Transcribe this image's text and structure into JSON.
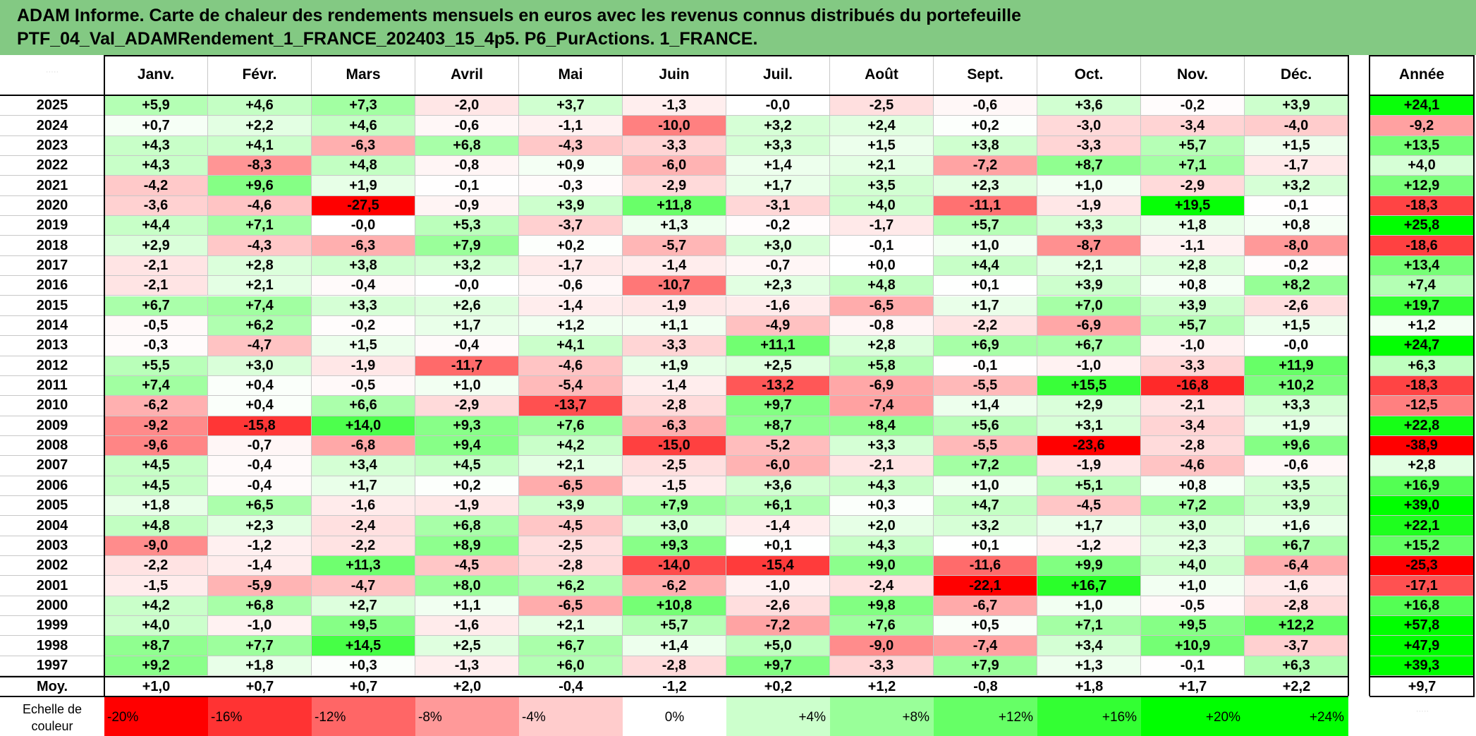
{
  "title": {
    "line1": "ADAM Informe. Carte de chaleur des rendements mensuels en euros avec les revenus connus distribués du portefeuille",
    "line2": "PTF_04_Val_ADAMRendement_1_FRANCE_202403_15_4p5. P6_PurActions. 1_FRANCE."
  },
  "chart_data": {
    "type": "heatmap",
    "columns": [
      "Janv.",
      "Févr.",
      "Mars",
      "Avril",
      "Mai",
      "Juin",
      "Juil.",
      "Août",
      "Sept.",
      "Oct.",
      "Nov.",
      "Déc."
    ],
    "year_column_label": "Année",
    "rows": [
      {
        "year": "2025",
        "values": [
          "+5,9",
          "+4,6",
          "+7,3",
          "-2,0",
          "+3,7",
          "-1,3",
          "-0,0",
          "-2,5",
          "-0,6",
          "+3,6",
          "-0,2",
          "+3,9"
        ],
        "annual": "+24,1"
      },
      {
        "year": "2024",
        "values": [
          "+0,7",
          "+2,2",
          "+4,6",
          "-0,6",
          "-1,1",
          "-10,0",
          "+3,2",
          "+2,4",
          "+0,2",
          "-3,0",
          "-3,4",
          "-4,0"
        ],
        "annual": "-9,2"
      },
      {
        "year": "2023",
        "values": [
          "+4,3",
          "+4,1",
          "-6,3",
          "+6,8",
          "-4,3",
          "-3,3",
          "+3,3",
          "+1,5",
          "+3,8",
          "-3,3",
          "+5,7",
          "+1,5"
        ],
        "annual": "+13,5"
      },
      {
        "year": "2022",
        "values": [
          "+4,3",
          "-8,3",
          "+4,8",
          "-0,8",
          "+0,9",
          "-6,0",
          "+1,4",
          "+2,1",
          "-7,2",
          "+8,7",
          "+7,1",
          "-1,7"
        ],
        "annual": "+4,0"
      },
      {
        "year": "2021",
        "values": [
          "-4,2",
          "+9,6",
          "+1,9",
          "-0,1",
          "-0,3",
          "-2,9",
          "+1,7",
          "+3,5",
          "+2,3",
          "+1,0",
          "-2,9",
          "+3,2"
        ],
        "annual": "+12,9"
      },
      {
        "year": "2020",
        "values": [
          "-3,6",
          "-4,6",
          "-27,5",
          "-0,9",
          "+3,9",
          "+11,8",
          "-3,1",
          "+4,0",
          "-11,1",
          "-1,9",
          "+19,5",
          "-0,1"
        ],
        "annual": "-18,3"
      },
      {
        "year": "2019",
        "values": [
          "+4,4",
          "+7,1",
          "-0,0",
          "+5,3",
          "-3,7",
          "+1,3",
          "-0,2",
          "-1,7",
          "+5,7",
          "+3,3",
          "+1,8",
          "+0,8"
        ],
        "annual": "+25,8"
      },
      {
        "year": "2018",
        "values": [
          "+2,9",
          "-4,3",
          "-6,3",
          "+7,9",
          "+0,2",
          "-5,7",
          "+3,0",
          "-0,1",
          "+1,0",
          "-8,7",
          "-1,1",
          "-8,0"
        ],
        "annual": "-18,6"
      },
      {
        "year": "2017",
        "values": [
          "-2,1",
          "+2,8",
          "+3,8",
          "+3,2",
          "-1,7",
          "-1,4",
          "-0,7",
          "+0,0",
          "+4,4",
          "+2,1",
          "+2,8",
          "-0,2"
        ],
        "annual": "+13,4"
      },
      {
        "year": "2016",
        "values": [
          "-2,1",
          "+2,1",
          "-0,4",
          "-0,0",
          "-0,6",
          "-10,7",
          "+2,3",
          "+4,8",
          "+0,1",
          "+3,9",
          "+0,8",
          "+8,2"
        ],
        "annual": "+7,4"
      },
      {
        "year": "2015",
        "values": [
          "+6,7",
          "+7,4",
          "+3,3",
          "+2,6",
          "-1,4",
          "-1,9",
          "-1,6",
          "-6,5",
          "+1,7",
          "+7,0",
          "+3,9",
          "-2,6"
        ],
        "annual": "+19,7"
      },
      {
        "year": "2014",
        "values": [
          "-0,5",
          "+6,2",
          "-0,2",
          "+1,7",
          "+1,2",
          "+1,1",
          "-4,9",
          "-0,8",
          "-2,2",
          "-6,9",
          "+5,7",
          "+1,5"
        ],
        "annual": "+1,2"
      },
      {
        "year": "2013",
        "values": [
          "-0,3",
          "-4,7",
          "+1,5",
          "-0,4",
          "+4,1",
          "-3,3",
          "+11,1",
          "+2,8",
          "+6,9",
          "+6,7",
          "-1,0",
          "-0,0"
        ],
        "annual": "+24,7"
      },
      {
        "year": "2012",
        "values": [
          "+5,5",
          "+3,0",
          "-1,9",
          "-11,7",
          "-4,6",
          "+1,9",
          "+2,5",
          "+5,8",
          "-0,1",
          "-1,0",
          "-3,3",
          "+11,9"
        ],
        "annual": "+6,3"
      },
      {
        "year": "2011",
        "values": [
          "+7,4",
          "+0,4",
          "-0,5",
          "+1,0",
          "-5,4",
          "-1,4",
          "-13,2",
          "-6,9",
          "-5,5",
          "+15,5",
          "-16,8",
          "+10,2"
        ],
        "annual": "-18,3"
      },
      {
        "year": "2010",
        "values": [
          "-6,2",
          "+0,4",
          "+6,6",
          "-2,9",
          "-13,7",
          "-2,8",
          "+9,7",
          "-7,4",
          "+1,4",
          "+2,9",
          "-2,1",
          "+3,3"
        ],
        "annual": "-12,5"
      },
      {
        "year": "2009",
        "values": [
          "-9,2",
          "-15,8",
          "+14,0",
          "+9,3",
          "+7,6",
          "-6,3",
          "+8,7",
          "+8,4",
          "+5,6",
          "+3,1",
          "-3,4",
          "+1,9"
        ],
        "annual": "+22,8"
      },
      {
        "year": "2008",
        "values": [
          "-9,6",
          "-0,7",
          "-6,8",
          "+9,4",
          "+4,2",
          "-15,0",
          "-5,2",
          "+3,3",
          "-5,5",
          "-23,6",
          "-2,8",
          "+9,6"
        ],
        "annual": "-38,9"
      },
      {
        "year": "2007",
        "values": [
          "+4,5",
          "-0,4",
          "+3,4",
          "+4,5",
          "+2,1",
          "-2,5",
          "-6,0",
          "-2,1",
          "+7,2",
          "-1,9",
          "-4,6",
          "-0,6"
        ],
        "annual": "+2,8"
      },
      {
        "year": "2006",
        "values": [
          "+4,5",
          "-0,4",
          "+1,7",
          "+0,2",
          "-6,5",
          "-1,5",
          "+3,6",
          "+4,3",
          "+1,0",
          "+5,1",
          "+0,8",
          "+3,5"
        ],
        "annual": "+16,9"
      },
      {
        "year": "2005",
        "values": [
          "+1,8",
          "+6,5",
          "-1,6",
          "-1,9",
          "+3,9",
          "+7,9",
          "+6,1",
          "+0,3",
          "+4,7",
          "-4,5",
          "+7,2",
          "+3,9"
        ],
        "annual": "+39,0"
      },
      {
        "year": "2004",
        "values": [
          "+4,8",
          "+2,3",
          "-2,4",
          "+6,8",
          "-4,5",
          "+3,0",
          "-1,4",
          "+2,0",
          "+3,2",
          "+1,7",
          "+3,0",
          "+1,6"
        ],
        "annual": "+22,1"
      },
      {
        "year": "2003",
        "values": [
          "-9,0",
          "-1,2",
          "-2,2",
          "+8,9",
          "-2,5",
          "+9,3",
          "+0,1",
          "+4,3",
          "+0,1",
          "-1,2",
          "+2,3",
          "+6,7"
        ],
        "annual": "+15,2"
      },
      {
        "year": "2002",
        "values": [
          "-2,2",
          "-1,4",
          "+11,3",
          "-4,5",
          "-2,8",
          "-14,0",
          "-15,4",
          "+9,0",
          "-11,6",
          "+9,9",
          "+4,0",
          "-6,4"
        ],
        "annual": "-25,3"
      },
      {
        "year": "2001",
        "values": [
          "-1,5",
          "-5,9",
          "-4,7",
          "+8,0",
          "+6,2",
          "-6,2",
          "-1,0",
          "-2,4",
          "-22,1",
          "+16,7",
          "+1,0",
          "-1,6"
        ],
        "annual": "-17,1"
      },
      {
        "year": "2000",
        "values": [
          "+4,2",
          "+6,8",
          "+2,7",
          "+1,1",
          "-6,5",
          "+10,8",
          "-2,6",
          "+9,8",
          "-6,7",
          "+1,0",
          "-0,5",
          "-2,8"
        ],
        "annual": "+16,8"
      },
      {
        "year": "1999",
        "values": [
          "+4,0",
          "-1,0",
          "+9,5",
          "-1,6",
          "+2,1",
          "+5,7",
          "-7,2",
          "+7,6",
          "+0,5",
          "+7,1",
          "+9,5",
          "+12,2"
        ],
        "annual": "+57,8"
      },
      {
        "year": "1998",
        "values": [
          "+8,7",
          "+7,7",
          "+14,5",
          "+2,5",
          "+6,7",
          "+1,4",
          "+5,0",
          "-9,0",
          "-7,4",
          "+3,4",
          "+10,9",
          "-3,7"
        ],
        "annual": "+47,9"
      },
      {
        "year": "1997",
        "values": [
          "+9,2",
          "+1,8",
          "+0,3",
          "-1,3",
          "+6,0",
          "-2,8",
          "+9,7",
          "-3,3",
          "+7,9",
          "+1,3",
          "-0,1",
          "+6,3"
        ],
        "annual": "+39,3"
      }
    ],
    "average": {
      "label": "Moy.",
      "values": [
        "+1,0",
        "+0,7",
        "+0,7",
        "+2,0",
        "-0,4",
        "-1,2",
        "+0,2",
        "+1,2",
        "-0,8",
        "+1,8",
        "+1,7",
        "+2,2"
      ],
      "annual": "+9,7"
    },
    "color_scale": {
      "label_line1": "Echelle de",
      "label_line2": "couleur",
      "steps": [
        {
          "label": "-20%",
          "value": -20,
          "color": "#ff0000"
        },
        {
          "label": "-16%",
          "value": -16,
          "color": "#ff3333"
        },
        {
          "label": "-12%",
          "value": -12,
          "color": "#ff6666"
        },
        {
          "label": "-8%",
          "value": -8,
          "color": "#ff9999"
        },
        {
          "label": "-4%",
          "value": -4,
          "color": "#ffcccc"
        },
        {
          "label": "0%",
          "value": 0,
          "color": "#ffffff"
        },
        {
          "label": "+4%",
          "value": 4,
          "color": "#ccffcc"
        },
        {
          "label": "+8%",
          "value": 8,
          "color": "#99ff99"
        },
        {
          "label": "+12%",
          "value": 12,
          "color": "#66ff66"
        },
        {
          "label": "+16%",
          "value": 16,
          "color": "#33ff33"
        },
        {
          "label": "+20%",
          "value": 20,
          "color": "#1aff1a"
        },
        {
          "label": "+24%",
          "value": 24,
          "color": "#00ff00"
        }
      ]
    },
    "monthly_scale_max": 20,
    "annual_scale_max": 25
  }
}
